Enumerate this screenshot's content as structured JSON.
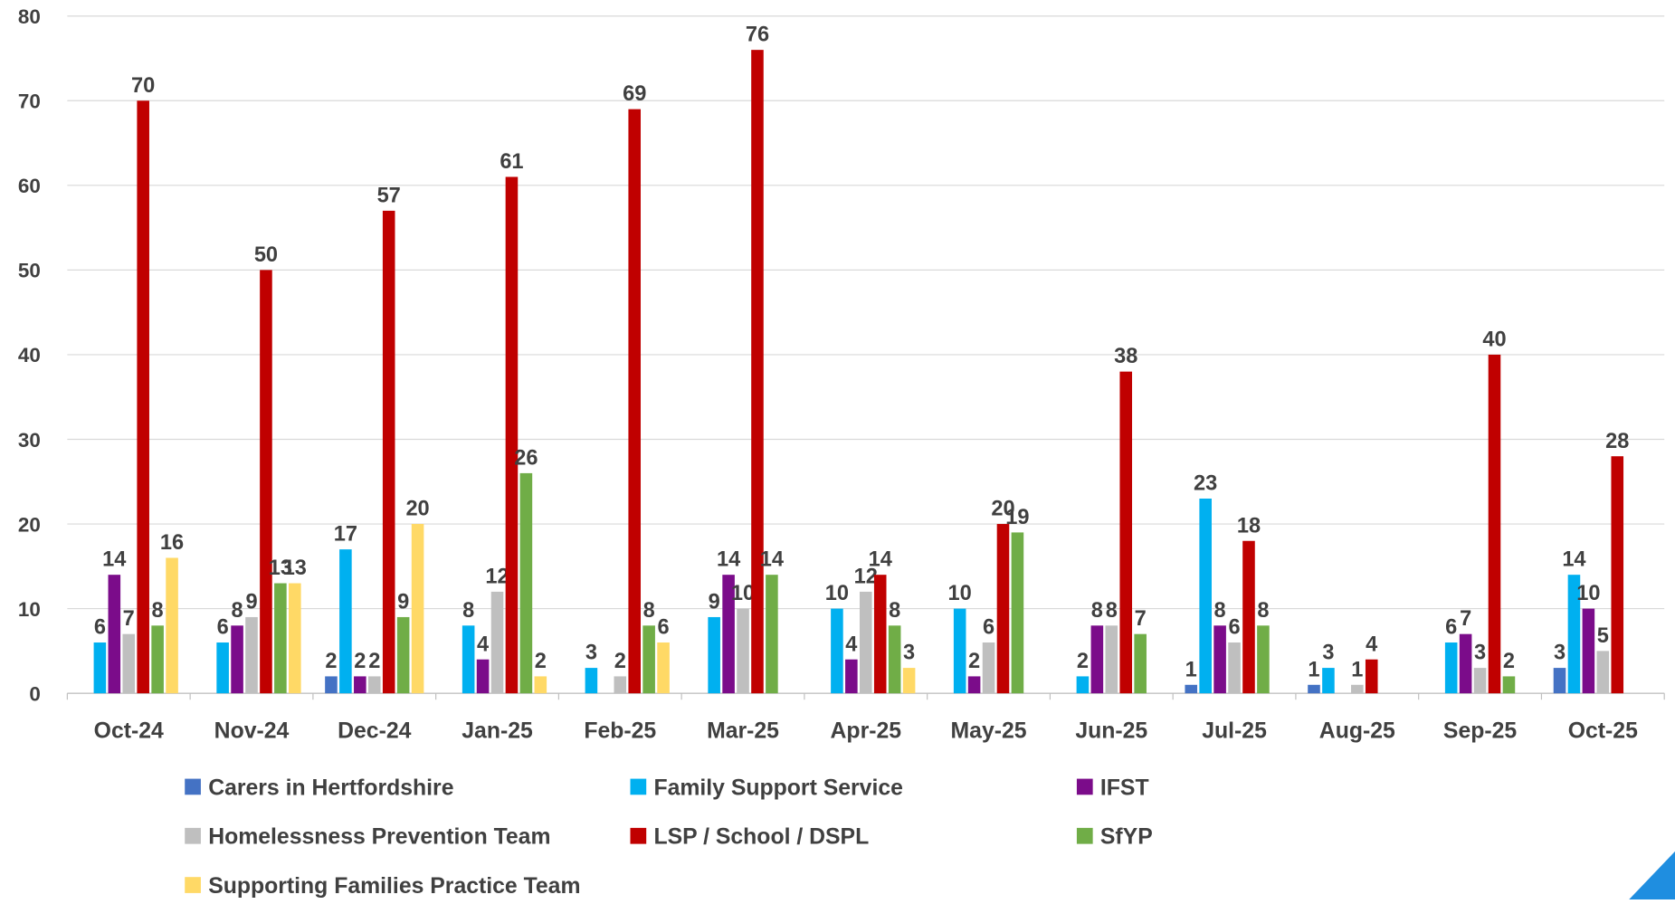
{
  "chart_data": {
    "type": "bar",
    "categories": [
      "Oct-24",
      "Nov-24",
      "Dec-24",
      "Jan-25",
      "Feb-25",
      "Mar-25",
      "Apr-25",
      "May-25",
      "Jun-25",
      "Jul-25",
      "Aug-25",
      "Sep-25",
      "Oct-25"
    ],
    "series": [
      {
        "name": "Carers in Hertfordshire",
        "color": "#4472c4",
        "values": [
          null,
          null,
          2,
          null,
          null,
          null,
          null,
          null,
          null,
          1,
          1,
          null,
          3
        ]
      },
      {
        "name": "Family Support Service",
        "color": "#00b0f0",
        "values": [
          6,
          6,
          17,
          8,
          3,
          9,
          10,
          10,
          2,
          23,
          3,
          6,
          14
        ]
      },
      {
        "name": "IFST",
        "color": "#7b0c8a",
        "values": [
          14,
          8,
          2,
          4,
          null,
          14,
          4,
          2,
          8,
          8,
          null,
          7,
          10
        ]
      },
      {
        "name": "Homelessness Prevention Team",
        "color": "#bfbfbf",
        "values": [
          7,
          9,
          2,
          12,
          2,
          10,
          12,
          6,
          8,
          6,
          1,
          3,
          5
        ]
      },
      {
        "name": "LSP / School / DSPL",
        "color": "#c00000",
        "values": [
          70,
          50,
          57,
          61,
          69,
          76,
          14,
          20,
          38,
          18,
          4,
          40,
          28
        ]
      },
      {
        "name": "SfYP",
        "color": "#70ad47",
        "values": [
          8,
          13,
          9,
          26,
          8,
          14,
          8,
          19,
          7,
          8,
          null,
          2,
          null
        ]
      },
      {
        "name": "Supporting Families Practice Team",
        "color": "#ffd966",
        "values": [
          16,
          13,
          20,
          2,
          6,
          null,
          3,
          null,
          null,
          null,
          null,
          null,
          null
        ]
      }
    ],
    "ylim": [
      0,
      80
    ],
    "yticks": [
      0,
      10,
      20,
      30,
      40,
      50,
      60,
      70,
      80
    ],
    "grid": true,
    "legend": "bottom"
  }
}
